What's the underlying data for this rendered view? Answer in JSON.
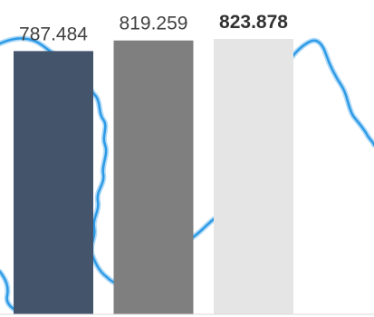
{
  "chart_data": {
    "type": "bar",
    "categories": [
      "",
      "",
      ""
    ],
    "values": [
      787.484,
      819.259,
      823.878
    ],
    "value_labels": [
      "787.484",
      "819.259",
      "823.878"
    ],
    "bold_label_index": 2,
    "ylim": [
      0,
      823.878
    ],
    "colors": [
      "#44546a",
      "#7f7f7f",
      "#e5e5e5"
    ],
    "annotation_color": "#2e9be6",
    "grid": false,
    "legend": "none",
    "title": "",
    "xlabel": "",
    "ylabel": ""
  }
}
